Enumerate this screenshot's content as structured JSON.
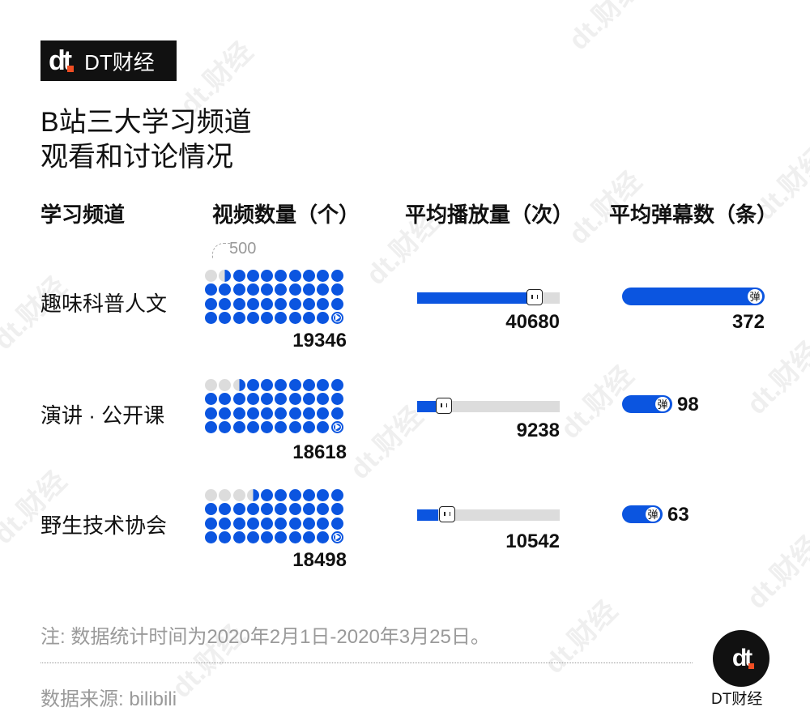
{
  "brand": {
    "logo": "dt",
    "name": "DT财经"
  },
  "title": {
    "line1": "B站三大学习频道",
    "line2": "观看和讨论情况"
  },
  "headers": {
    "channel": "学习频道",
    "videos": "视频数量（个）",
    "plays": "平均播放量（次）",
    "danmaku": "平均弹幕数（条）"
  },
  "legend": {
    "unit_label": "500",
    "icon_label": "弹"
  },
  "rows": [
    {
      "channel": "趣味科普人文",
      "videos": "19346",
      "plays": "40680",
      "danmaku": "372"
    },
    {
      "channel": "演讲 · 公开课",
      "videos": "18618",
      "plays": "9238",
      "danmaku": "98"
    },
    {
      "channel": "野生技术协会",
      "videos": "18498",
      "plays": "10542",
      "danmaku": "63"
    }
  ],
  "footer": {
    "note": "注: 数据统计时间为2020年2月1日-2020年3月25日。",
    "source": "数据来源: bilibili",
    "brand_name": "DT财经"
  },
  "colors": {
    "accent": "#0b55e0",
    "empty": "#dcdcdc",
    "brand_orange": "#f04e23"
  },
  "chart_data": {
    "type": "table",
    "title": "B站三大学习频道观看和讨论情况",
    "categories": [
      "趣味科普人文",
      "演讲 · 公开课",
      "野生技术协会"
    ],
    "series": [
      {
        "name": "视频数量（个）",
        "values": [
          19346,
          18618,
          18498
        ],
        "encoding": "dot grid, 1 dot = 500, 40 dots max"
      },
      {
        "name": "平均播放量（次）",
        "values": [
          40680,
          9238,
          10542
        ],
        "encoding": "progress bar"
      },
      {
        "name": "平均弹幕数（条）",
        "values": [
          372,
          98,
          63
        ],
        "encoding": "pill bar"
      }
    ],
    "annotations": [
      "1 dot = 500",
      "注: 数据统计时间为2020年2月1日-2020年3月25日。",
      "数据来源: bilibili"
    ]
  }
}
